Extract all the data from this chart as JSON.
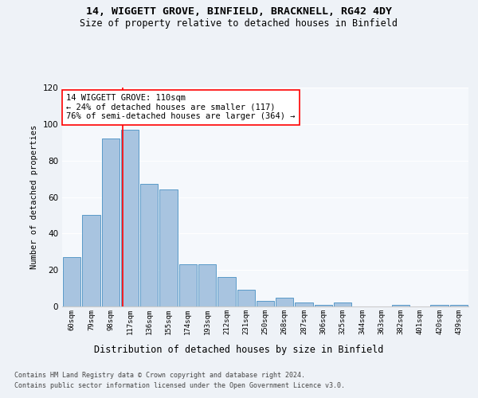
{
  "title_line1": "14, WIGGETT GROVE, BINFIELD, BRACKNELL, RG42 4DY",
  "title_line2": "Size of property relative to detached houses in Binfield",
  "xlabel": "Distribution of detached houses by size in Binfield",
  "ylabel": "Number of detached properties",
  "categories": [
    "60sqm",
    "79sqm",
    "98sqm",
    "117sqm",
    "136sqm",
    "155sqm",
    "174sqm",
    "193sqm",
    "212sqm",
    "231sqm",
    "250sqm",
    "268sqm",
    "287sqm",
    "306sqm",
    "325sqm",
    "344sqm",
    "363sqm",
    "382sqm",
    "401sqm",
    "420sqm",
    "439sqm"
  ],
  "values": [
    27,
    50,
    92,
    97,
    67,
    64,
    23,
    23,
    16,
    9,
    3,
    5,
    2,
    1,
    2,
    0,
    0,
    1,
    0,
    1,
    1
  ],
  "bar_color": "#a8c4e0",
  "bar_edge_color": "#5a9ac8",
  "ylim": [
    0,
    120
  ],
  "yticks": [
    0,
    20,
    40,
    60,
    80,
    100,
    120
  ],
  "red_line_x": 2.63,
  "annotation_line1": "14 WIGGETT GROVE: 110sqm",
  "annotation_line2": "← 24% of detached houses are smaller (117)",
  "annotation_line3": "76% of semi-detached houses are larger (364) →",
  "footer_line1": "Contains HM Land Registry data © Crown copyright and database right 2024.",
  "footer_line2": "Contains public sector information licensed under the Open Government Licence v3.0.",
  "background_color": "#eef2f7",
  "plot_bg_color": "#f5f8fc"
}
